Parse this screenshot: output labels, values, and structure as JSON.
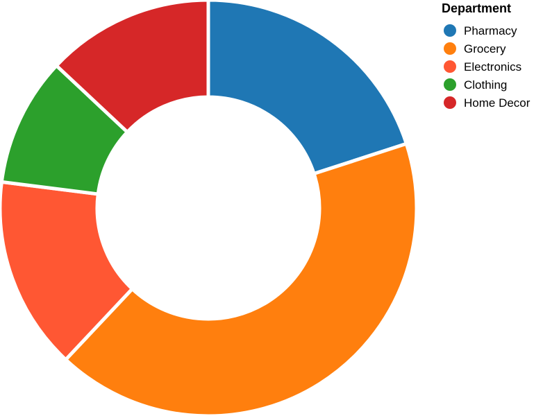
{
  "chart_data": {
    "type": "pie",
    "variant": "donut",
    "categories": [
      "Pharmacy",
      "Grocery",
      "Electronics",
      "Clothing",
      "Home Decor"
    ],
    "values": [
      20,
      42,
      15,
      10,
      13
    ],
    "colors": [
      "#1f77b4",
      "#ff7f0e",
      "#ff5733",
      "#2ca02c",
      "#d62728"
    ],
    "start_angle_degrees": 0,
    "direction": "clockwise",
    "legend": {
      "title": "Department",
      "placement": "top-right"
    }
  }
}
